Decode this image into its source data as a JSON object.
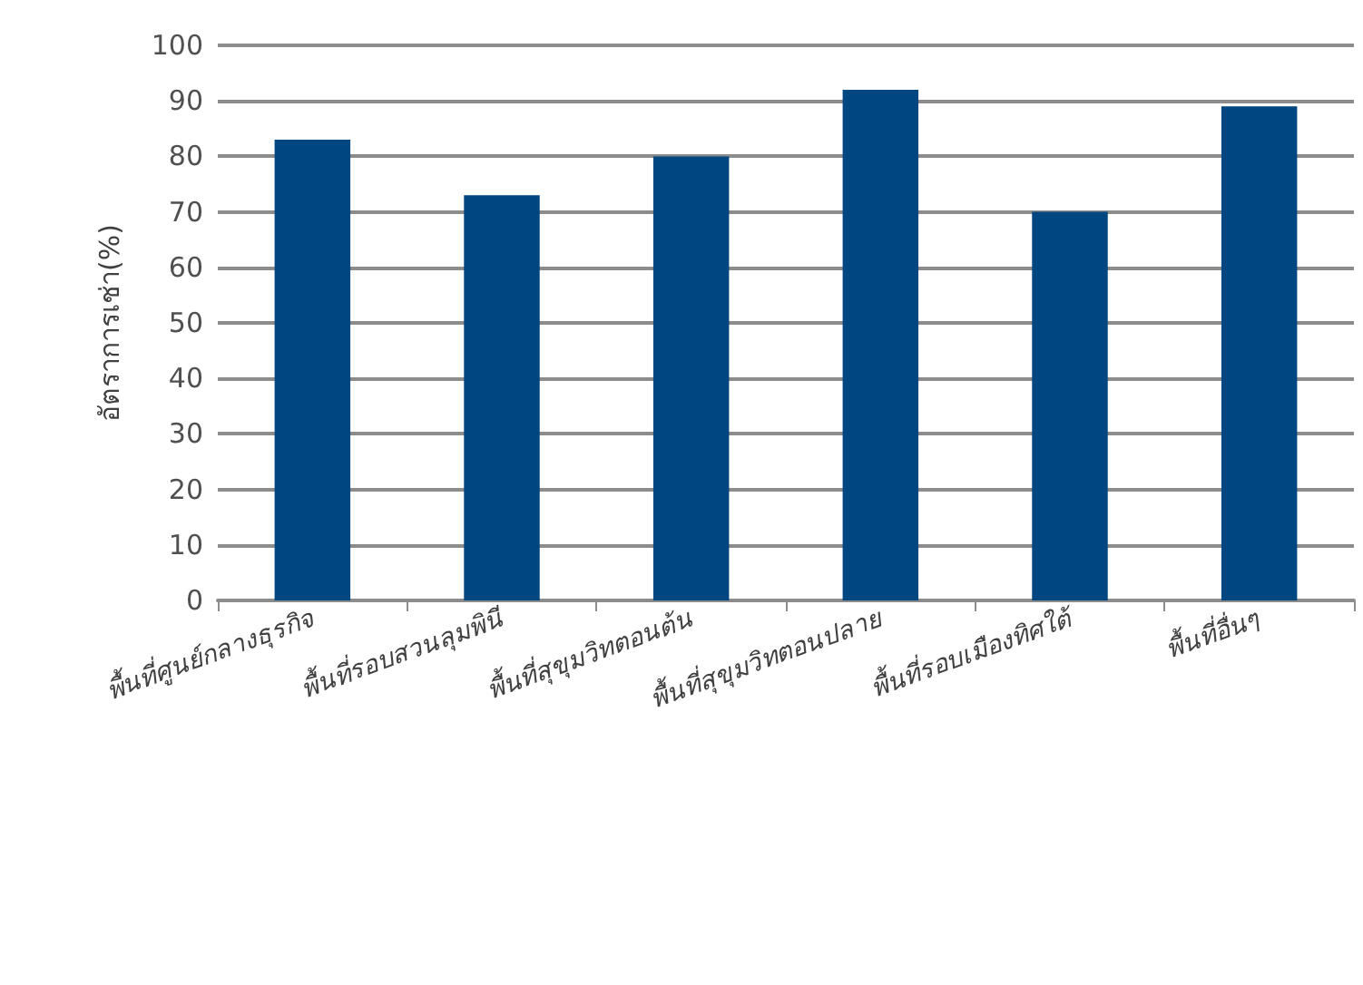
{
  "chart_data": {
    "type": "bar",
    "ylabel": "อัตราการเช่า(%)",
    "categories": [
      "พื้นที่ศูนย์กลางธุรกิจ",
      "พื้นที่รอบสวนลุมพินี",
      "พื้นที่สุขุมวิทตอนต้น",
      "พื้นที่สุขุมวิทตอนปลาย",
      "พื้นที่รอบเมืองทิศใต้",
      "พื้นที่อื่นๆ"
    ],
    "values": [
      83,
      73,
      80,
      92,
      70,
      89
    ],
    "color": "#004680",
    "ylim": [
      0,
      100
    ],
    "yticks": [
      0,
      10,
      20,
      30,
      40,
      50,
      60,
      70,
      80,
      90,
      100
    ],
    "grid": "y"
  }
}
